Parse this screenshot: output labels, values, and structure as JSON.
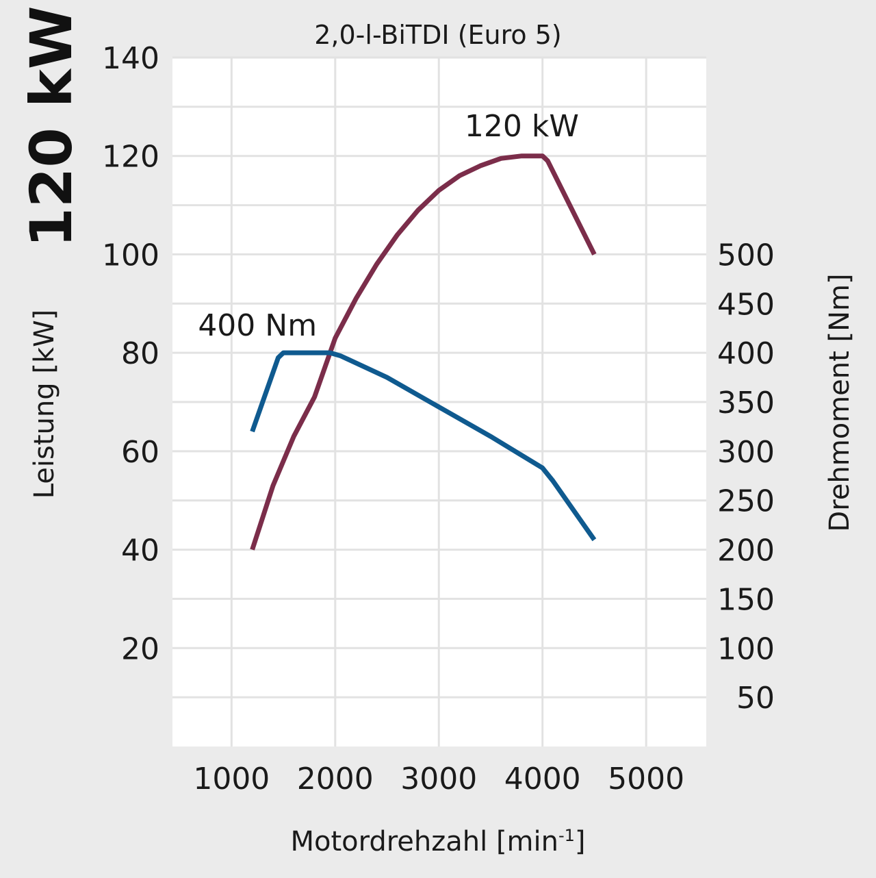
{
  "headline": "120 kW",
  "chart_data": {
    "type": "line",
    "title": "2,0-l-BiTDI (Euro 5)",
    "xlabel": "Motordrehzahl [min",
    "xlabel_sup": "-1",
    "xlabel_end": "]",
    "ylabel_left": "Leistung [kW]",
    "ylabel_right": "Drehmoment [Nm]",
    "xlim": [
      430,
      5580
    ],
    "ylim_left": [
      0,
      140
    ],
    "ylim_right": [
      0,
      700
    ],
    "x_ticks": [
      1000,
      2000,
      3000,
      4000,
      5000
    ],
    "x_tick_labels": [
      "1000",
      "2000",
      "3000",
      "4000",
      "5000"
    ],
    "y_left_ticks": [
      20,
      40,
      60,
      80,
      100,
      120,
      140
    ],
    "y_left_tick_labels": [
      "20",
      "40",
      "60",
      "80",
      "100",
      "120",
      "140"
    ],
    "y_right_ticks": [
      50,
      100,
      150,
      200,
      250,
      300,
      350,
      400,
      450,
      500
    ],
    "y_right_tick_labels": [
      "50",
      "100",
      "150",
      "200",
      "250",
      "300",
      "350",
      "400",
      "450",
      "500"
    ],
    "grid_y": [
      10,
      20,
      30,
      40,
      50,
      60,
      70,
      80,
      90,
      100,
      110,
      120,
      130,
      140
    ],
    "grid_x": [
      1000,
      2000,
      3000,
      4000,
      5000
    ],
    "grid": true,
    "series": [
      {
        "axis": "left",
        "color": "#7b2d4a",
        "x": [
          1200,
          1400,
          1600,
          1800,
          2000,
          2200,
          2400,
          2600,
          2800,
          3000,
          3200,
          3400,
          3600,
          3800,
          4000,
          4050,
          4500
        ],
        "y": [
          40,
          53,
          63,
          71,
          83,
          91,
          98,
          104,
          109,
          113,
          116,
          118,
          119.5,
          120,
          120,
          119,
          100
        ]
      },
      {
        "axis": "right",
        "color": "#0f5a8f",
        "x": [
          1200,
          1450,
          1500,
          1750,
          1950,
          2050,
          2500,
          3000,
          3500,
          4000,
          4100,
          4500
        ],
        "y": [
          320,
          395,
          400,
          400,
          400,
          397,
          375,
          345,
          315,
          283,
          270,
          210
        ]
      }
    ],
    "annotations": [
      {
        "text": "120 kW",
        "x": 3800,
        "y": 124
      },
      {
        "text": "400 Nm",
        "x": 1250,
        "y": 83.5
      }
    ]
  }
}
